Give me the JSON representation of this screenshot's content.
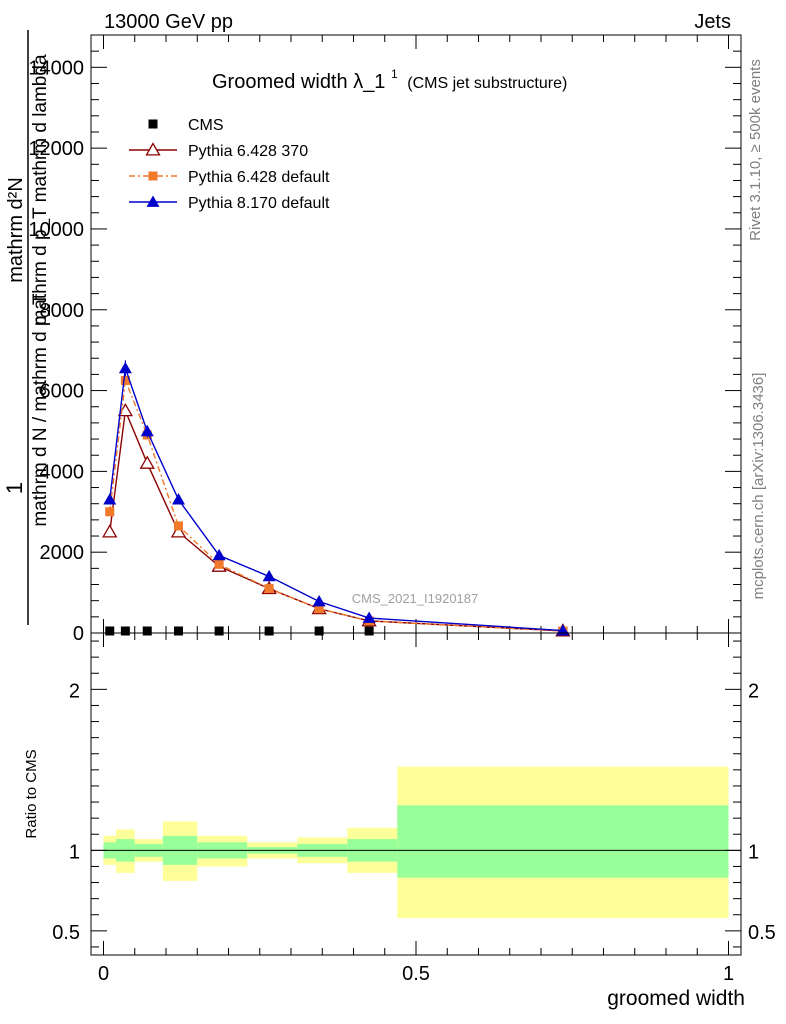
{
  "header": {
    "left": "13000 GeV pp",
    "right": "Jets"
  },
  "title": {
    "main": "Groomed width",
    "symbol": "λ_1",
    "superscript": "1",
    "sub": "(CMS jet substructure)"
  },
  "side_labels": {
    "rivet": "Rivet 3.1.10, ≥ 500k events",
    "mcplots": "mcplots.cern.ch [arXiv:1306.3436]"
  },
  "watermark": "CMS_2021_I1920187",
  "ylabel_top": {
    "one": "1",
    "num": "mathrm d²N",
    "den": "mathrm d N / mathrm d p_T",
    "den2": "mathrm d p_T mathrm d lambda"
  },
  "ylabel_ratio": "Ratio to CMS",
  "xlabel": "groomed width",
  "legend": [
    {
      "name": "CMS"
    },
    {
      "name": "Pythia 6.428 370"
    },
    {
      "name": "Pythia 6.428 default"
    },
    {
      "name": "Pythia 8.170 default"
    }
  ],
  "chart_data": {
    "type": "line",
    "x_range": [
      -0.02,
      1.02
    ],
    "main_ylim": [
      0,
      14800
    ],
    "main_yticks": [
      {
        "v": 0,
        "label": "0"
      },
      {
        "v": 2000,
        "label": "2000"
      },
      {
        "v": 4000,
        "label": "4000"
      },
      {
        "v": 6000,
        "label": "6000"
      },
      {
        "v": 8000,
        "label": "8000"
      },
      {
        "v": 10000,
        "label": "10000"
      },
      {
        "v": 12000,
        "label": "12000"
      },
      {
        "v": 14000,
        "label": "14000"
      }
    ],
    "xticks": [
      {
        "v": 0,
        "label": "0"
      },
      {
        "v": 0.5,
        "label": "0.5"
      },
      {
        "v": 1,
        "label": "1"
      }
    ],
    "x": [
      0.01,
      0.035,
      0.07,
      0.12,
      0.185,
      0.265,
      0.345,
      0.425,
      0.735
    ],
    "series": [
      {
        "name": "CMS",
        "color": "#000000",
        "marker": "square",
        "values": [
          0,
          0,
          0,
          0,
          0,
          0,
          0,
          0,
          0
        ]
      },
      {
        "name": "Pythia 6.428 370",
        "color": "#8b0000",
        "marker": "triangle-open",
        "values": [
          2500,
          5500,
          4200,
          2500,
          1650,
          1100,
          600,
          300,
          50
        ]
      },
      {
        "name": "Pythia 6.428 default",
        "color": "#f07a2a",
        "marker": "square",
        "dash": "dashdot",
        "values": [
          3000,
          6250,
          4900,
          2650,
          1700,
          1100,
          600,
          300,
          50
        ]
      },
      {
        "name": "Pythia 8.170 default",
        "color": "#0000cc",
        "marker": "triangle",
        "values": [
          3300,
          6550,
          4990,
          3300,
          1920,
          1400,
          780,
          370,
          60
        ]
      }
    ],
    "ratio_ylim": [
      0.35,
      2.35
    ],
    "ratio_yticks": [
      {
        "v": 0.5,
        "label": "0.5"
      },
      {
        "v": 1,
        "label": "1"
      },
      {
        "v": 2,
        "label": "2"
      }
    ],
    "ratio_bands": [
      {
        "x0": 0.0,
        "x1": 0.02,
        "inner": [
          0.95,
          1.05
        ],
        "outer": [
          0.91,
          1.09
        ]
      },
      {
        "x0": 0.02,
        "x1": 0.05,
        "inner": [
          0.93,
          1.07
        ],
        "outer": [
          0.86,
          1.13
        ]
      },
      {
        "x0": 0.05,
        "x1": 0.095,
        "inner": [
          0.96,
          1.04
        ],
        "outer": [
          0.93,
          1.07
        ]
      },
      {
        "x0": 0.095,
        "x1": 0.15,
        "inner": [
          0.91,
          1.09
        ],
        "outer": [
          0.81,
          1.18
        ]
      },
      {
        "x0": 0.15,
        "x1": 0.23,
        "inner": [
          0.95,
          1.05
        ],
        "outer": [
          0.9,
          1.09
        ]
      },
      {
        "x0": 0.23,
        "x1": 0.31,
        "inner": [
          0.98,
          1.02
        ],
        "outer": [
          0.95,
          1.05
        ]
      },
      {
        "x0": 0.31,
        "x1": 0.39,
        "inner": [
          0.96,
          1.04
        ],
        "outer": [
          0.92,
          1.08
        ]
      },
      {
        "x0": 0.39,
        "x1": 0.47,
        "inner": [
          0.93,
          1.07
        ],
        "outer": [
          0.86,
          1.14
        ]
      },
      {
        "x0": 0.47,
        "x1": 1.0,
        "inner": [
          0.83,
          1.28
        ],
        "outer": [
          0.58,
          1.52
        ]
      }
    ]
  }
}
